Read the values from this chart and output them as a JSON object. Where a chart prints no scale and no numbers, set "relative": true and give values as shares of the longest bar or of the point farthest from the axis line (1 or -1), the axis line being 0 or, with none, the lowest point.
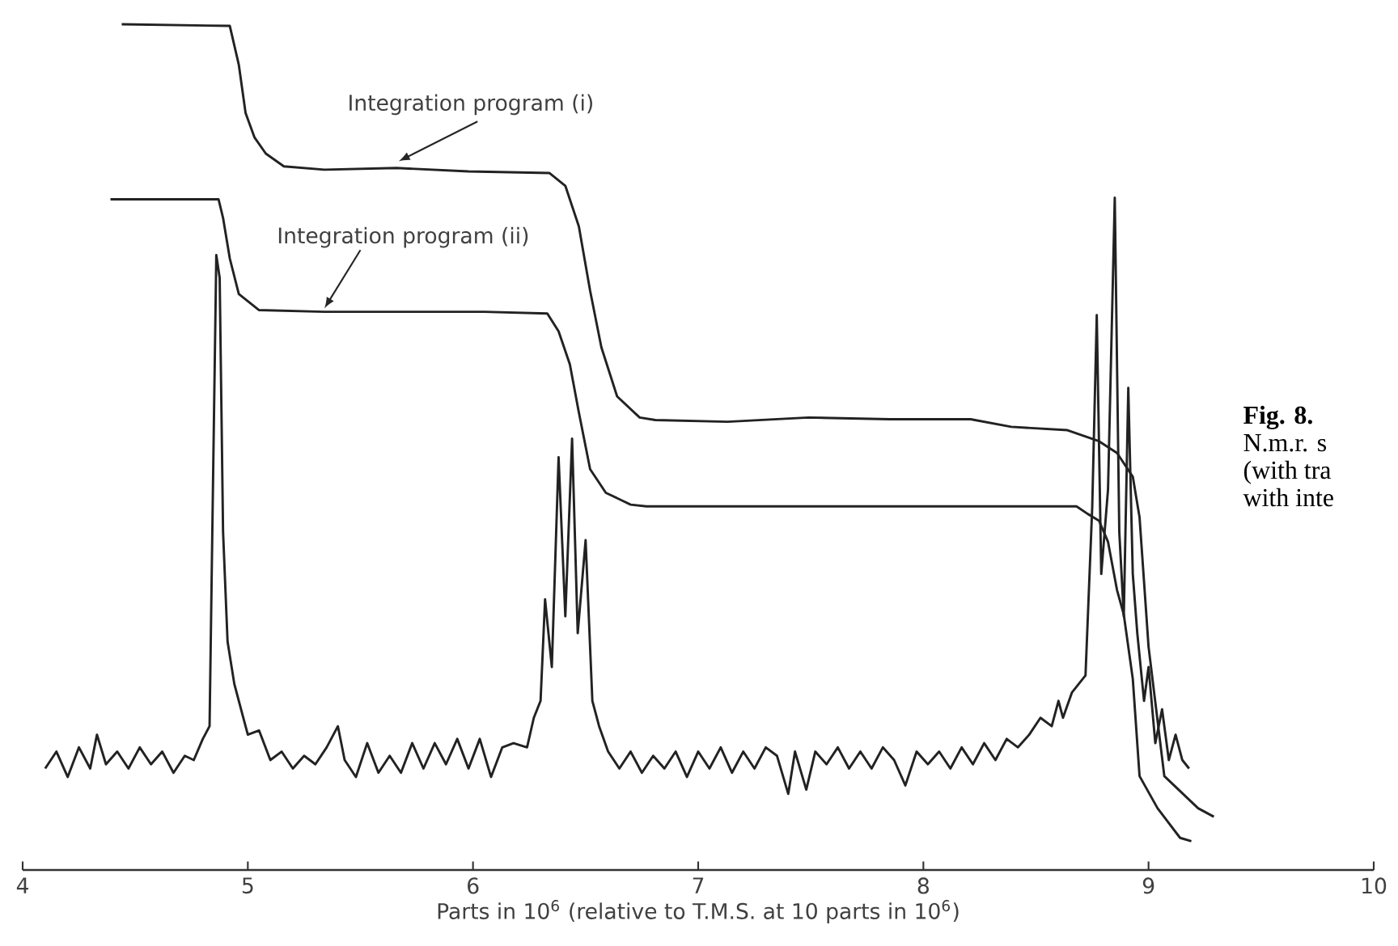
{
  "chart_data": {
    "type": "line",
    "relative": true,
    "xlabel": "Parts in 10$^{6}$ (relative to T.M.S. at 10 parts in 10$^{6}$)",
    "xlim": [
      4,
      10
    ],
    "xticks": [
      4,
      5,
      6,
      7,
      8,
      9,
      10
    ],
    "grid": false,
    "legend": false,
    "marker": "none",
    "line_style": "solid",
    "annotations": [
      "**Fig. 8.**",
      "N.m.r. s",
      "(with tra",
      "with inte"
    ],
    "series": [
      {
        "name": "Integration program (i)",
        "color": "#222222",
        "x": [
          4.44,
          4.92,
          4.96,
          4.99,
          5.03,
          5.08,
          5.16,
          5.34,
          5.66,
          5.98,
          6.34,
          6.41,
          6.47,
          6.52,
          6.57,
          6.64,
          6.74,
          6.81,
          7.13,
          7.49,
          7.85,
          8.21,
          8.39,
          8.64,
          8.78,
          8.86,
          8.93,
          8.96,
          9.0,
          9.07,
          9.22,
          9.29
        ],
        "values": [
          1.0,
          0.998,
          0.952,
          0.895,
          0.866,
          0.847,
          0.832,
          0.828,
          0.83,
          0.826,
          0.824,
          0.809,
          0.761,
          0.685,
          0.618,
          0.56,
          0.535,
          0.532,
          0.53,
          0.535,
          0.533,
          0.533,
          0.524,
          0.52,
          0.507,
          0.493,
          0.465,
          0.417,
          0.264,
          0.111,
          0.073,
          0.063
        ]
      },
      {
        "name": "Integration program (ii)",
        "color": "#222222",
        "x": [
          4.39,
          4.87,
          4.89,
          4.92,
          4.96,
          5.05,
          5.34,
          6.05,
          6.33,
          6.38,
          6.43,
          6.47,
          6.52,
          6.59,
          6.7,
          6.77,
          7.49,
          8.68,
          8.73,
          8.78,
          8.82,
          8.86,
          8.89,
          8.93,
          8.96,
          9.04,
          9.14,
          9.19
        ],
        "values": [
          0.793,
          0.793,
          0.771,
          0.723,
          0.681,
          0.662,
          0.66,
          0.66,
          0.658,
          0.637,
          0.598,
          0.541,
          0.474,
          0.446,
          0.432,
          0.43,
          0.43,
          0.43,
          0.421,
          0.413,
          0.388,
          0.331,
          0.302,
          0.226,
          0.111,
          0.073,
          0.038,
          0.034
        ]
      },
      {
        "color": "#222222",
        "x": [
          4.1,
          4.15,
          4.2,
          4.25,
          4.3,
          4.33,
          4.37,
          4.42,
          4.47,
          4.52,
          4.57,
          4.62,
          4.67,
          4.72,
          4.76,
          4.8,
          4.83,
          4.845,
          4.86,
          4.875,
          4.89,
          4.91,
          4.94,
          4.97,
          5.0,
          5.05,
          5.1,
          5.15,
          5.2,
          5.25,
          5.3,
          5.35,
          5.4,
          5.43,
          5.48,
          5.53,
          5.58,
          5.63,
          5.68,
          5.73,
          5.78,
          5.83,
          5.88,
          5.93,
          5.98,
          6.03,
          6.08,
          6.13,
          6.18,
          6.24,
          6.27,
          6.3,
          6.32,
          6.35,
          6.38,
          6.41,
          6.44,
          6.465,
          6.5,
          6.53,
          6.56,
          6.6,
          6.65,
          6.7,
          6.75,
          6.8,
          6.85,
          6.9,
          6.95,
          7.0,
          7.05,
          7.1,
          7.15,
          7.2,
          7.25,
          7.3,
          7.35,
          7.4,
          7.43,
          7.48,
          7.52,
          7.57,
          7.62,
          7.67,
          7.72,
          7.77,
          7.82,
          7.87,
          7.92,
          7.97,
          8.02,
          8.07,
          8.12,
          8.17,
          8.22,
          8.27,
          8.32,
          8.37,
          8.42,
          8.47,
          8.52,
          8.57,
          8.6,
          8.62,
          8.66,
          8.72,
          8.75,
          8.77,
          8.79,
          8.82,
          8.85,
          8.87,
          8.89,
          8.91,
          8.93,
          8.95,
          8.98,
          9.0,
          9.03,
          9.06,
          9.09,
          9.12,
          9.15,
          9.18
        ],
        "values": [
          0.12,
          0.14,
          0.11,
          0.145,
          0.12,
          0.16,
          0.125,
          0.14,
          0.12,
          0.145,
          0.125,
          0.14,
          0.115,
          0.135,
          0.13,
          0.155,
          0.17,
          0.45,
          0.727,
          0.7,
          0.4,
          0.27,
          0.22,
          0.19,
          0.16,
          0.165,
          0.13,
          0.14,
          0.12,
          0.135,
          0.125,
          0.145,
          0.17,
          0.13,
          0.11,
          0.15,
          0.115,
          0.135,
          0.115,
          0.15,
          0.12,
          0.15,
          0.125,
          0.155,
          0.12,
          0.155,
          0.11,
          0.145,
          0.15,
          0.145,
          0.18,
          0.2,
          0.32,
          0.24,
          0.488,
          0.3,
          0.51,
          0.28,
          0.39,
          0.2,
          0.17,
          0.14,
          0.12,
          0.14,
          0.115,
          0.135,
          0.12,
          0.14,
          0.11,
          0.14,
          0.12,
          0.145,
          0.115,
          0.14,
          0.12,
          0.145,
          0.135,
          0.09,
          0.14,
          0.095,
          0.14,
          0.125,
          0.145,
          0.12,
          0.14,
          0.12,
          0.145,
          0.13,
          0.1,
          0.14,
          0.125,
          0.14,
          0.12,
          0.145,
          0.125,
          0.15,
          0.13,
          0.155,
          0.145,
          0.16,
          0.18,
          0.17,
          0.2,
          0.18,
          0.21,
          0.23,
          0.43,
          0.656,
          0.35,
          0.45,
          0.795,
          0.4,
          0.3,
          0.57,
          0.35,
          0.28,
          0.2,
          0.24,
          0.15,
          0.19,
          0.13,
          0.16,
          0.13,
          0.12
        ]
      }
    ]
  }
}
